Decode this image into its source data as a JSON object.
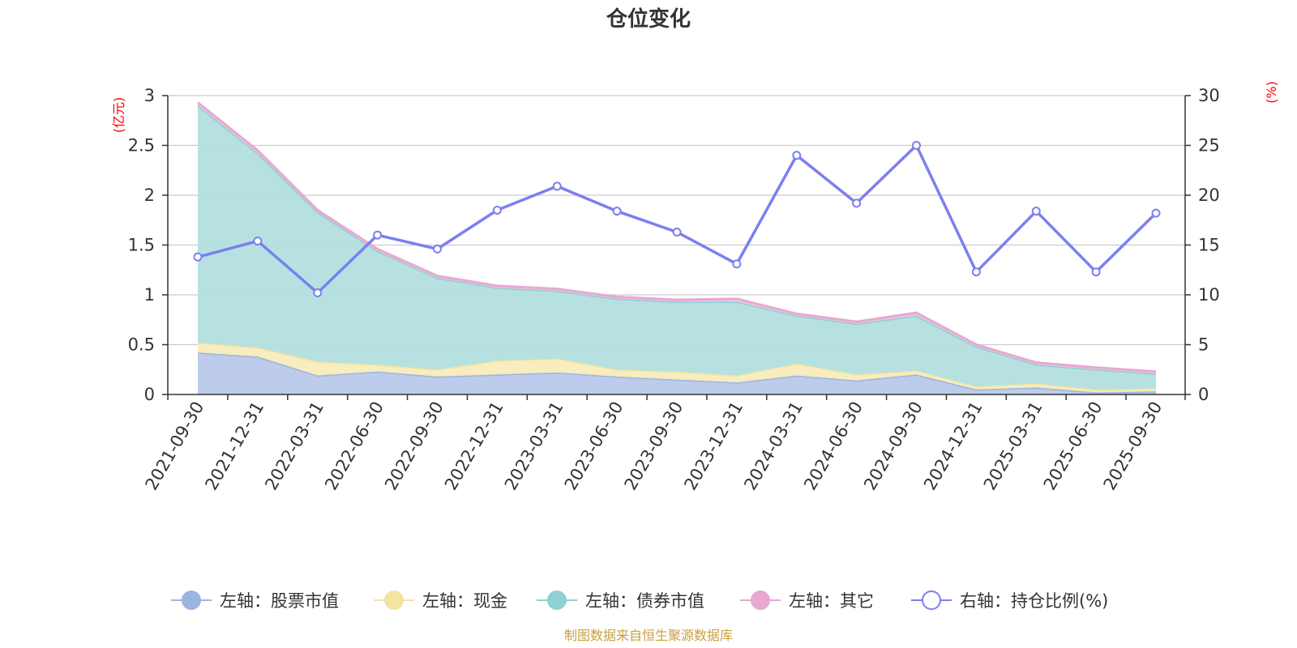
{
  "chart_data": {
    "type": "area",
    "title": "仓位变化",
    "categories": [
      "2021-09-30",
      "2021-12-31",
      "2022-03-31",
      "2022-06-30",
      "2022-09-30",
      "2022-12-31",
      "2023-03-31",
      "2023-06-30",
      "2023-09-30",
      "2023-12-31",
      "2024-03-31",
      "2024-06-30",
      "2024-09-30",
      "2024-12-31",
      "2025-03-31",
      "2025-06-30",
      "2025-09-30"
    ],
    "left_axis": {
      "unit": "(亿元)",
      "ylim": [
        0,
        3
      ],
      "ticks": [
        "0",
        "0.5",
        "1",
        "1.5",
        "2",
        "2.5",
        "3"
      ],
      "tick_values": [
        0,
        0.5,
        1,
        1.5,
        2,
        2.5,
        3
      ]
    },
    "right_axis": {
      "unit": "(%)",
      "ylim": [
        0,
        30
      ],
      "ticks": [
        "0",
        "5",
        "10",
        "15",
        "20",
        "25",
        "30"
      ],
      "tick_values": [
        0,
        5,
        10,
        15,
        20,
        25,
        30
      ]
    },
    "series": [
      {
        "name": "左轴：股票市值",
        "axis": "left",
        "stack": true,
        "color": "#9bb5e0",
        "fill": "#b9c9eb",
        "values": [
          0.42,
          0.38,
          0.19,
          0.23,
          0.18,
          0.2,
          0.22,
          0.18,
          0.15,
          0.12,
          0.19,
          0.14,
          0.2,
          0.05,
          0.07,
          0.02,
          0.03
        ]
      },
      {
        "name": "左轴：现金",
        "axis": "left",
        "stack": true,
        "color": "#f5e4a0",
        "fill": "#f8ecbc",
        "values": [
          0.1,
          0.09,
          0.14,
          0.07,
          0.07,
          0.14,
          0.14,
          0.07,
          0.08,
          0.07,
          0.12,
          0.06,
          0.04,
          0.03,
          0.04,
          0.03,
          0.03
        ]
      },
      {
        "name": "左轴：债券市值",
        "axis": "left",
        "stack": true,
        "color": "#8fd0d0",
        "fill": "#b3dfdf",
        "values": [
          2.38,
          1.95,
          1.5,
          1.14,
          0.92,
          0.73,
          0.68,
          0.71,
          0.7,
          0.74,
          0.48,
          0.51,
          0.55,
          0.4,
          0.19,
          0.2,
          0.15
        ]
      },
      {
        "name": "左轴：其它",
        "axis": "left",
        "stack": true,
        "color": "#e8a8d2",
        "fill": "#f0c2e0",
        "values": [
          0.03,
          0.03,
          0.02,
          0.02,
          0.02,
          0.02,
          0.02,
          0.02,
          0.02,
          0.03,
          0.02,
          0.02,
          0.03,
          0.02,
          0.02,
          0.02,
          0.02
        ]
      },
      {
        "name": "右轴：持仓比例(%)",
        "axis": "right",
        "type": "line",
        "color": "#7b7ff0",
        "values": [
          13.8,
          15.4,
          10.2,
          16.0,
          14.6,
          18.5,
          20.9,
          18.4,
          16.3,
          13.1,
          24.0,
          19.2,
          25.0,
          12.3,
          18.4,
          12.3,
          18.2
        ]
      }
    ],
    "legend_position": "bottom-center",
    "grid": true
  },
  "source_note": "制图数据来自恒生聚源数据库",
  "colors": {
    "axis": "#333333",
    "grid": "#cccccc",
    "unit": "#ff0000",
    "source": "#c8a040"
  }
}
